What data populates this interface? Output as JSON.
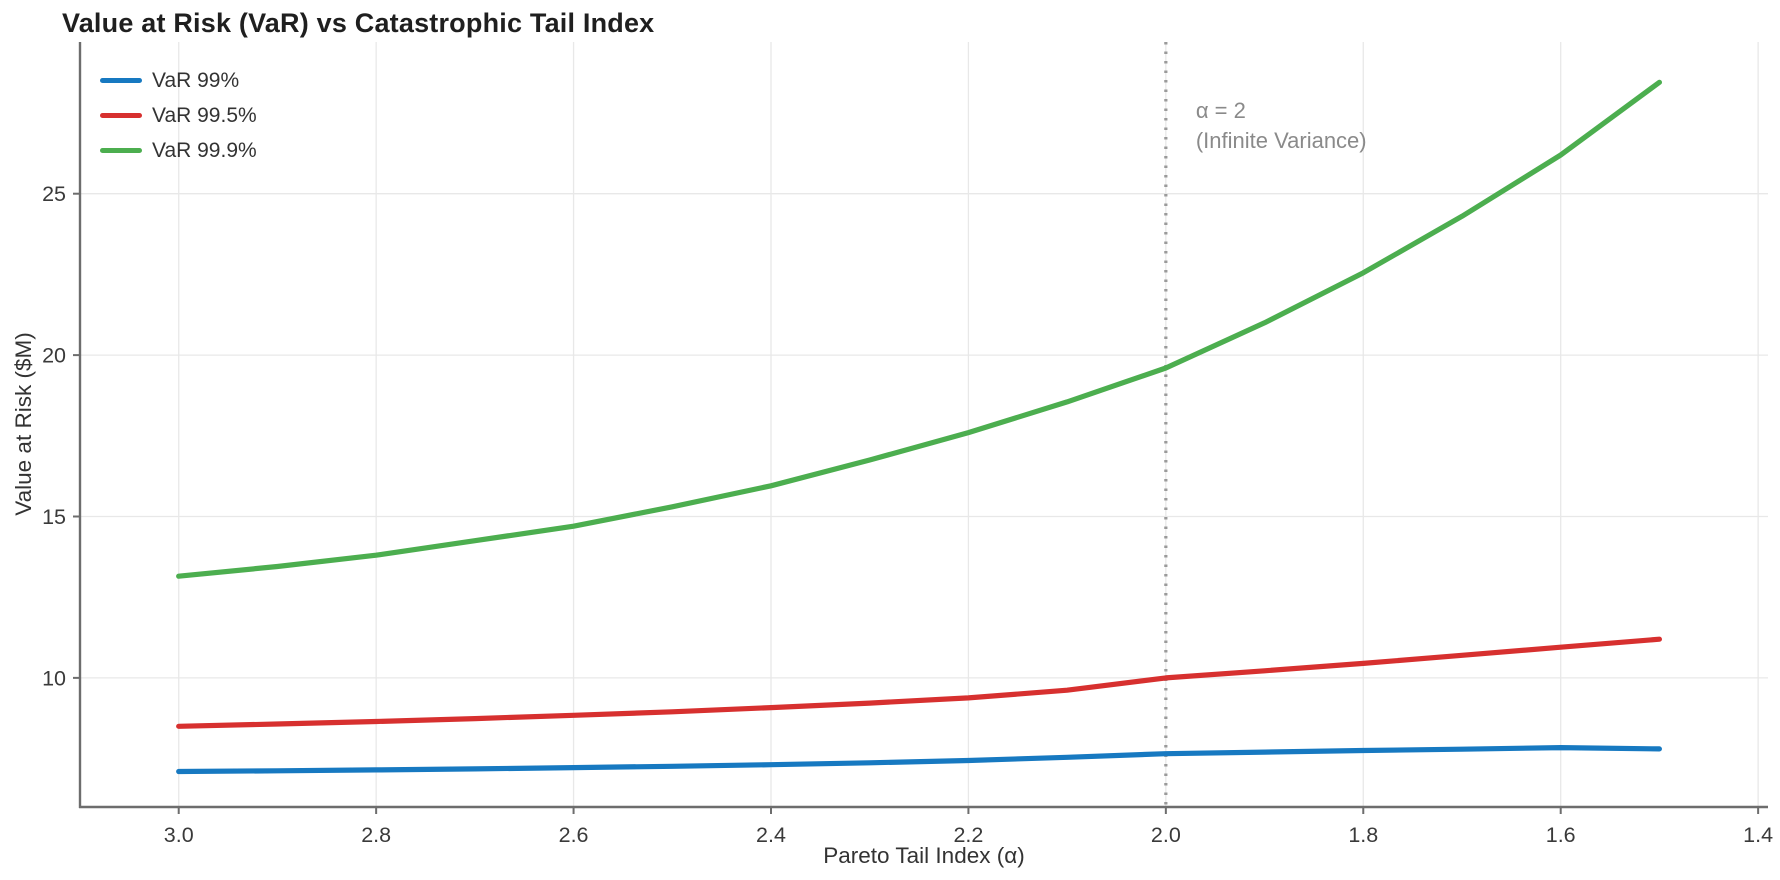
{
  "chart_data": {
    "type": "line",
    "title": "Value at Risk (VaR) vs Catastrophic Tail Index",
    "xlabel": "Pareto Tail Index (α)",
    "ylabel": "Value at Risk ($M)",
    "x_axis_reversed": true,
    "xlim": [
      3.1,
      1.39
    ],
    "ylim": [
      6.0,
      29.7
    ],
    "x_ticks": [
      3.0,
      2.8,
      2.6,
      2.4,
      2.2,
      2.0,
      1.8,
      1.6,
      1.4
    ],
    "x_tick_labels": [
      "3.0",
      "2.8",
      "2.6",
      "2.4",
      "2.2",
      "2.0",
      "1.8",
      "1.6",
      "1.4"
    ],
    "y_ticks": [
      10,
      15,
      20,
      25
    ],
    "y_tick_labels": [
      "10",
      "15",
      "20",
      "25"
    ],
    "grid": true,
    "legend_position": "top-left",
    "x": [
      3.0,
      2.9,
      2.8,
      2.7,
      2.6,
      2.5,
      2.4,
      2.3,
      2.2,
      2.1,
      2.0,
      1.9,
      1.8,
      1.7,
      1.6,
      1.5
    ],
    "series": [
      {
        "name": "VaR 99%",
        "color": "#1779c1",
        "values": [
          7.1,
          7.12,
          7.15,
          7.18,
          7.22,
          7.26,
          7.31,
          7.37,
          7.44,
          7.54,
          7.65,
          7.7,
          7.75,
          7.79,
          7.84,
          7.8
        ]
      },
      {
        "name": "VaR 99.5%",
        "color": "#d7302f",
        "values": [
          8.5,
          8.57,
          8.65,
          8.74,
          8.84,
          8.95,
          9.08,
          9.22,
          9.38,
          9.62,
          10.0,
          10.22,
          10.45,
          10.7,
          10.95,
          11.2
        ]
      },
      {
        "name": "VaR 99.9%",
        "color": "#4cae4f",
        "values": [
          13.15,
          13.45,
          13.8,
          14.25,
          14.7,
          15.3,
          15.95,
          16.75,
          17.6,
          18.55,
          19.6,
          21.0,
          22.55,
          24.3,
          26.2,
          28.45
        ]
      }
    ],
    "annotation": {
      "x": 2.0,
      "line1": "α = 2",
      "line2": "(Infinite Variance)",
      "line_style": "dotted-vertical",
      "line_color": "#9a9a9a",
      "text_color": "#8a8a8a"
    },
    "colors": {
      "grid": "#e8e8e8",
      "spine": "#6d6d6d",
      "tick_text": "#3a3a3a",
      "title_text": "#1f1f1f",
      "background": "#ffffff"
    }
  }
}
